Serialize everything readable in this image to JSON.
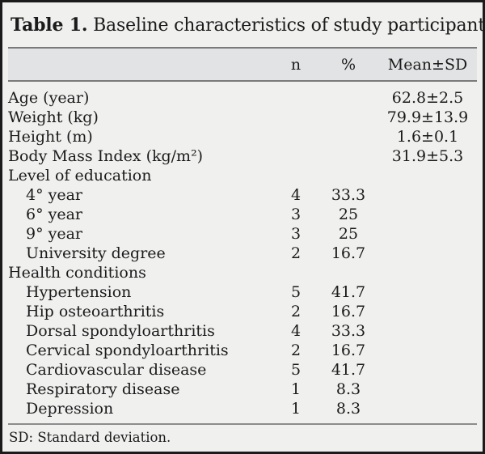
{
  "title": {
    "label": "Table 1.",
    "text": " Baseline characteristics of study participants"
  },
  "table": {
    "columns": {
      "label": "",
      "n": "n",
      "pct": "%",
      "mean": "Mean±SD"
    },
    "rows": [
      {
        "label": "Age (year)",
        "n": "",
        "pct": "",
        "mean": "62.8±2.5"
      },
      {
        "label": "Weight (kg)",
        "n": "",
        "pct": "",
        "mean": "79.9±13.9"
      },
      {
        "label": "Height (m)",
        "n": "",
        "pct": "",
        "mean": "1.6±0.1"
      },
      {
        "label": "Body Mass Index (kg/m²)",
        "n": "",
        "pct": "",
        "mean": "31.9±5.3"
      },
      {
        "label": "Level of education",
        "n": "",
        "pct": "",
        "mean": ""
      },
      {
        "label": "4° year",
        "n": "4",
        "pct": "33.3",
        "mean": ""
      },
      {
        "label": "6° year",
        "n": "3",
        "pct": "25",
        "mean": ""
      },
      {
        "label": "9° year",
        "n": "3",
        "pct": "25",
        "mean": ""
      },
      {
        "label": "University degree",
        "n": "2",
        "pct": "16.7",
        "mean": ""
      },
      {
        "label": "Health conditions",
        "n": "",
        "pct": "",
        "mean": ""
      },
      {
        "label": "Hypertension",
        "n": "5",
        "pct": "41.7",
        "mean": ""
      },
      {
        "label": "Hip osteoarthritis",
        "n": "2",
        "pct": "16.7",
        "mean": ""
      },
      {
        "label": "Dorsal spondyloarthritis",
        "n": "4",
        "pct": "33.3",
        "mean": ""
      },
      {
        "label": "Cervical spondyloarthritis",
        "n": "2",
        "pct": "16.7",
        "mean": ""
      },
      {
        "label": "Cardiovascular disease",
        "n": "5",
        "pct": "41.7",
        "mean": ""
      },
      {
        "label": "Respiratory disease",
        "n": "1",
        "pct": "8.3",
        "mean": ""
      },
      {
        "label": "Depression",
        "n": "1",
        "pct": "8.3",
        "mean": ""
      }
    ]
  },
  "footnote": "SD: Standard deviation.",
  "colors": {
    "background": "#f0f0ef",
    "header_band": "#e2e3e4",
    "rule": "#7a7a7a",
    "outer_border": "#1b1b1b",
    "text": "#1b1b1b"
  }
}
